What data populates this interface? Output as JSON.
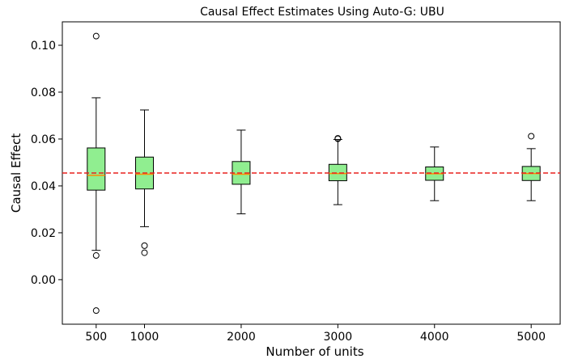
{
  "chart_data": {
    "type": "box",
    "title": "Causal Effect Estimates Using Auto-G: UBU",
    "xlabel": "Number of units",
    "ylabel": "Causal Effect",
    "xlim": [
      150,
      5300
    ],
    "ylim": [
      -0.019,
      0.11
    ],
    "xticks": [
      500,
      1000,
      2000,
      3000,
      4000,
      5000
    ],
    "xtick_labels": [
      "500",
      "1000",
      "2000",
      "3000",
      "4000",
      "5000"
    ],
    "yticks": [
      0.0,
      0.02,
      0.04,
      0.06,
      0.08,
      0.1
    ],
    "ytick_labels": [
      "0.00",
      "0.02",
      "0.04",
      "0.06",
      "0.08",
      "0.10"
    ],
    "reference_line": {
      "y": 0.0455,
      "color": "#e8201e",
      "style": "dashed"
    },
    "box_color": "#90ee90",
    "median_color": "#ff8c00",
    "grid": false,
    "boxes": [
      {
        "x": 500,
        "whislo": 0.0125,
        "q1": 0.0382,
        "med": 0.0445,
        "q3": 0.0562,
        "whishi": 0.0776,
        "fliers": [
          0.1039,
          0.0103,
          -0.0132
        ]
      },
      {
        "x": 1000,
        "whislo": 0.0226,
        "q1": 0.0387,
        "med": 0.045,
        "q3": 0.0523,
        "whishi": 0.0724,
        "fliers": [
          0.0145,
          0.0115
        ]
      },
      {
        "x": 2000,
        "whislo": 0.0281,
        "q1": 0.0407,
        "med": 0.045,
        "q3": 0.0504,
        "whishi": 0.0638,
        "fliers": []
      },
      {
        "x": 3000,
        "whislo": 0.032,
        "q1": 0.0422,
        "med": 0.0453,
        "q3": 0.0492,
        "whishi": 0.0598,
        "fliers": [
          0.0603,
          0.0601
        ]
      },
      {
        "x": 4000,
        "whislo": 0.0337,
        "q1": 0.0424,
        "med": 0.0452,
        "q3": 0.0481,
        "whishi": 0.0566,
        "fliers": []
      },
      {
        "x": 5000,
        "whislo": 0.0337,
        "q1": 0.0423,
        "med": 0.0453,
        "q3": 0.0483,
        "whishi": 0.0559,
        "fliers": [
          0.0612
        ]
      }
    ]
  }
}
